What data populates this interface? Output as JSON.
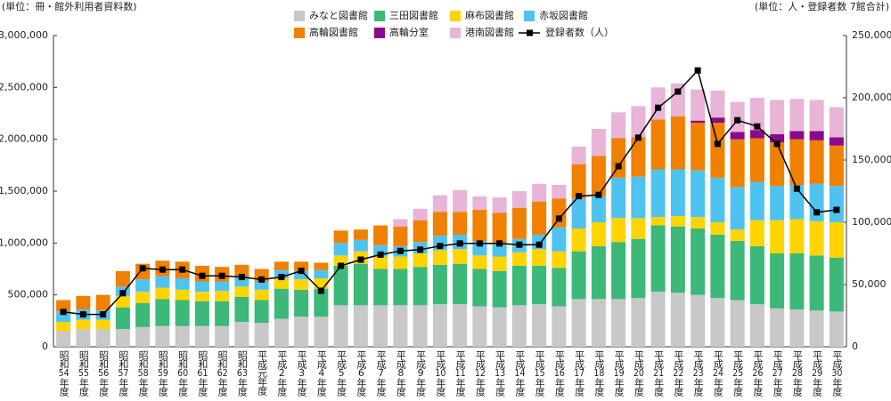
{
  "chart_data": {
    "type": "bar",
    "y_unit_label": "(単位：冊・館外利用者資料数)",
    "y2_unit_label": "(単位：人・登録者数 7館合計)",
    "categories": [
      "昭和54年度",
      "昭和55年度",
      "昭和56年度",
      "昭和57年度",
      "昭和58年度",
      "昭和59年度",
      "昭和60年度",
      "昭和61年度",
      "昭和62年度",
      "昭和63年度",
      "平成元年度",
      "平成2年度",
      "平成3年度",
      "平成4年度",
      "平成5年度",
      "平成6年度",
      "平成7年度",
      "平成8年度",
      "平成9年度",
      "平成10年度",
      "平成11年度",
      "平成12年度",
      "平成13年度",
      "平成14年度",
      "平成15年度",
      "平成16年度",
      "平成17年度",
      "平成18年度",
      "平成19年度",
      "平成20年度",
      "平成21年度",
      "平成22年度",
      "平成23年度",
      "平成24年度",
      "平成25年度",
      "平成26年度",
      "平成27年度",
      "平成28年度",
      "平成29年度",
      "平成30年度"
    ],
    "stacked": true,
    "series": [
      {
        "name": "みなと図書館",
        "color": "#c8c8c8",
        "values": [
          150000,
          170000,
          170000,
          170000,
          190000,
          200000,
          200000,
          200000,
          200000,
          240000,
          230000,
          270000,
          290000,
          290000,
          400000,
          400000,
          400000,
          400000,
          400000,
          410000,
          410000,
          390000,
          380000,
          400000,
          410000,
          390000,
          460000,
          460000,
          460000,
          470000,
          530000,
          520000,
          500000,
          470000,
          450000,
          410000,
          370000,
          360000,
          350000,
          340000
        ]
      },
      {
        "name": "三田図書館",
        "color": "#3cb878",
        "values": [
          0,
          0,
          0,
          210000,
          230000,
          260000,
          250000,
          240000,
          240000,
          240000,
          220000,
          290000,
          260000,
          270000,
          380000,
          400000,
          350000,
          350000,
          370000,
          380000,
          390000,
          360000,
          350000,
          380000,
          370000,
          370000,
          460000,
          510000,
          550000,
          570000,
          640000,
          640000,
          640000,
          610000,
          570000,
          560000,
          530000,
          540000,
          530000,
          520000
        ]
      },
      {
        "name": "麻布図書館",
        "color": "#ffd400",
        "values": [
          90000,
          90000,
          90000,
          110000,
          110000,
          110000,
          100000,
          90000,
          100000,
          100000,
          100000,
          100000,
          100000,
          100000,
          100000,
          120000,
          120000,
          120000,
          130000,
          140000,
          140000,
          130000,
          140000,
          130000,
          160000,
          160000,
          220000,
          230000,
          230000,
          200000,
          80000,
          100000,
          110000,
          120000,
          110000,
          250000,
          320000,
          330000,
          330000,
          340000
        ]
      },
      {
        "name": "赤坂図書館",
        "color": "#4fc3f0",
        "values": [
          100000,
          100000,
          90000,
          90000,
          120000,
          110000,
          110000,
          100000,
          90000,
          90000,
          80000,
          80000,
          80000,
          80000,
          120000,
          110000,
          110000,
          100000,
          110000,
          140000,
          140000,
          140000,
          120000,
          130000,
          140000,
          230000,
          290000,
          250000,
          390000,
          400000,
          460000,
          450000,
          450000,
          430000,
          410000,
          370000,
          330000,
          330000,
          360000,
          350000
        ]
      },
      {
        "name": "高輪図書館",
        "color": "#f08000",
        "values": [
          110000,
          130000,
          150000,
          150000,
          150000,
          150000,
          160000,
          150000,
          140000,
          120000,
          120000,
          80000,
          90000,
          70000,
          120000,
          100000,
          190000,
          190000,
          210000,
          230000,
          220000,
          300000,
          300000,
          300000,
          320000,
          280000,
          330000,
          390000,
          380000,
          380000,
          480000,
          510000,
          460000,
          530000,
          460000,
          420000,
          420000,
          440000,
          420000,
          390000
        ]
      },
      {
        "name": "高輪分室",
        "color": "#8b0a8b",
        "values": [
          0,
          0,
          0,
          0,
          0,
          0,
          0,
          0,
          0,
          0,
          0,
          0,
          0,
          0,
          0,
          0,
          0,
          0,
          0,
          0,
          0,
          0,
          0,
          0,
          0,
          0,
          0,
          0,
          0,
          0,
          0,
          0,
          20000,
          50000,
          70000,
          80000,
          80000,
          80000,
          90000,
          80000
        ]
      },
      {
        "name": "港南図書館",
        "color": "#e8b4d8",
        "values": [
          0,
          0,
          0,
          0,
          0,
          0,
          0,
          0,
          0,
          0,
          0,
          0,
          0,
          0,
          0,
          0,
          0,
          70000,
          110000,
          160000,
          210000,
          130000,
          150000,
          160000,
          170000,
          130000,
          170000,
          260000,
          250000,
          300000,
          310000,
          320000,
          300000,
          260000,
          290000,
          310000,
          330000,
          310000,
          300000,
          290000
        ]
      },
      {
        "name": "登録者数（人）",
        "type": "line",
        "axis": "y2",
        "color": "#000000",
        "values": [
          28000,
          26000,
          26000,
          43000,
          63000,
          62000,
          62000,
          57000,
          57000,
          56000,
          54000,
          56000,
          61000,
          45000,
          65000,
          70000,
          74000,
          77000,
          78000,
          81000,
          83000,
          83000,
          83000,
          82000,
          82000,
          103000,
          121000,
          122000,
          145000,
          168000,
          192000,
          205000,
          222000,
          163000,
          182000,
          177000,
          163000,
          127000,
          108000,
          110000
        ]
      }
    ],
    "ylim": [
      0,
      3000000
    ],
    "yticks": [
      0,
      {
        "value": 500000,
        "label": "500,000"
      },
      {
        "value": 1000000,
        "label": "1,000,000"
      },
      {
        "value": 1500000,
        "label": "1,500,000"
      },
      {
        "value": 2000000,
        "label": "2,000,000"
      },
      {
        "value": 2500000,
        "label": "2,500,000"
      },
      {
        "value": 3000000,
        "label": "3,000,000"
      }
    ],
    "y2lim": [
      0,
      250000
    ],
    "y2ticks": [
      0,
      {
        "value": 50000,
        "label": "50,000"
      },
      {
        "value": 100000,
        "label": "100,000"
      },
      {
        "value": 150000,
        "label": "150,000"
      },
      {
        "value": 200000,
        "label": "200,000"
      },
      {
        "value": 250000,
        "label": "250,000"
      }
    ],
    "grid": false
  }
}
